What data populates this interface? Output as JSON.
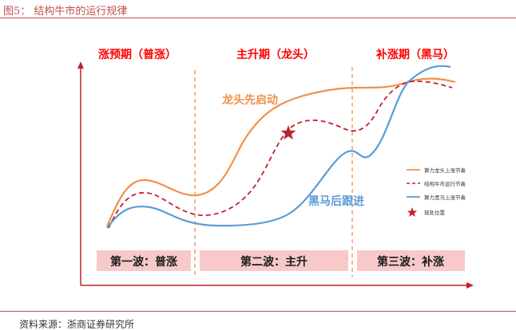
{
  "figure": {
    "title": "图5： 结构牛市的运行规律",
    "source": "资料来源：浙商证券研究所"
  },
  "phases": [
    {
      "header": "涨预期（普涨）",
      "wave": "第一波：普涨"
    },
    {
      "header": "主升期（龙头）",
      "wave": "第二波：主升"
    },
    {
      "header": "补涨期（黑马）",
      "wave": "第三波：补涨"
    }
  ],
  "annotations": {
    "leader": "龙头先启动",
    "darkhorse": "黑马后跟进"
  },
  "legend": [
    {
      "label": "算力龙头上涨节奏",
      "style": "solid",
      "color": "#f0904a"
    },
    {
      "label": "结构牛市运行节奏",
      "style": "dashed",
      "color": "#c0222c"
    },
    {
      "label": "算力黑马上涨节奏",
      "style": "solid",
      "color": "#5b9bd5"
    },
    {
      "label": "现处位置",
      "style": "star",
      "color": "#c0222c"
    }
  ],
  "colors": {
    "header_red": "#ff0000",
    "wave_bg": "#f8c9c9",
    "divider": "#f0904a",
    "axis": "#c0222c",
    "leader_text": "#f0904a",
    "darkhorse_text": "#5b9bd5"
  }
}
